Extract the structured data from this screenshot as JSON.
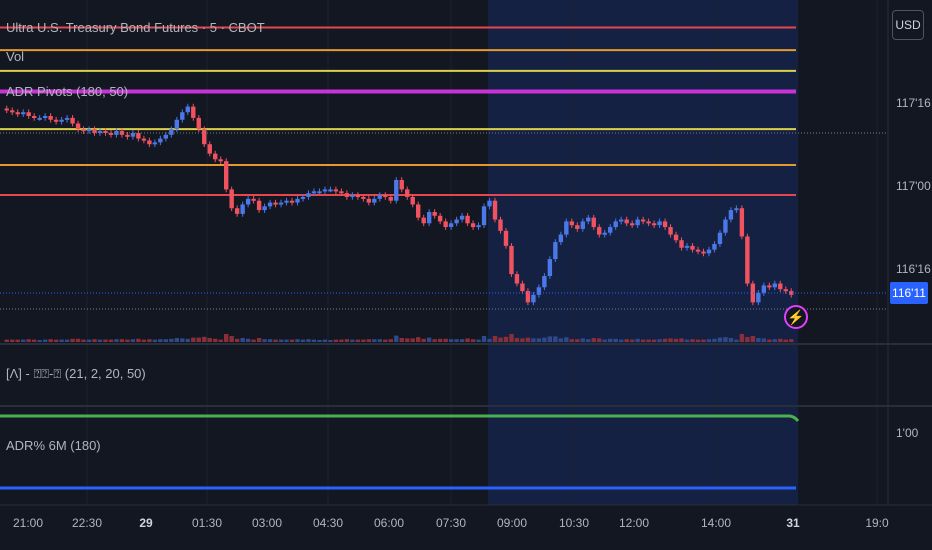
{
  "header": {
    "title": "Ultra U.S. Treasury Bond Futures · 5 · CBOT",
    "vol_label": "Vol",
    "adr_pivots_label": "ADR Pivots (180, 50)",
    "currency": "USD"
  },
  "indicators": {
    "panel2_label": "[Λ] - ⍰⍰-⍰ (21, 2, 20, 50)",
    "panel3_label": "ADR% 6M (180)",
    "panel3_value": "1'00"
  },
  "price_axis": {
    "labels": [
      "117'16",
      "117'00",
      "116'16"
    ],
    "current_price": "116'11"
  },
  "time_axis": {
    "labels": [
      "21:00",
      "22:30",
      "29",
      "01:30",
      "03:00",
      "04:30",
      "06:00",
      "07:30",
      "09:00",
      "10:30",
      "12:00",
      "14:00",
      "31",
      "19:0"
    ]
  },
  "colors": {
    "background": "#131722",
    "up_candle": "#4a78e8",
    "down_candle": "#f0535f",
    "line_red": "#e4474f",
    "line_orange": "#e49a2c",
    "line_yellow": "#dcd04a",
    "line_magenta": "#c832d6",
    "adr_green": "#4caf50",
    "adr_blue": "#2962ff"
  },
  "icons": {
    "alert": "lightning-icon"
  },
  "chart_data": {
    "type": "candlestick",
    "price_ylim": [
      116.1,
      117.8
    ],
    "pivot_levels": [
      {
        "level": 117.76,
        "color": "red"
      },
      {
        "level": 117.64,
        "color": "orange"
      },
      {
        "level": 117.53,
        "color": "yellow"
      },
      {
        "level": 117.42,
        "color": "magenta"
      },
      {
        "level": 117.22,
        "color": "yellow"
      },
      {
        "level": 117.03,
        "color": "orange"
      },
      {
        "level": 116.87,
        "color": "red"
      }
    ],
    "current_price": 116.34,
    "closes": [
      117.32,
      117.31,
      117.3,
      117.31,
      117.29,
      117.28,
      117.28,
      117.29,
      117.27,
      117.26,
      117.27,
      117.28,
      117.25,
      117.22,
      117.21,
      117.22,
      117.2,
      117.21,
      117.2,
      117.19,
      117.21,
      117.19,
      117.18,
      117.2,
      117.17,
      117.16,
      117.14,
      117.15,
      117.17,
      117.19,
      117.22,
      117.27,
      117.31,
      117.34,
      117.28,
      117.22,
      117.14,
      117.09,
      117.06,
      117.05,
      116.9,
      116.8,
      116.77,
      116.82,
      116.85,
      116.84,
      116.79,
      116.81,
      116.83,
      116.82,
      116.83,
      116.84,
      116.83,
      116.85,
      116.86,
      116.88,
      116.89,
      116.89,
      116.9,
      116.9,
      116.89,
      116.88,
      116.86,
      116.87,
      116.86,
      116.85,
      116.83,
      116.85,
      116.87,
      116.86,
      116.84,
      116.95,
      116.9,
      116.86,
      116.82,
      116.75,
      116.72,
      116.78,
      116.76,
      116.73,
      116.7,
      116.72,
      116.74,
      116.76,
      116.72,
      116.7,
      116.71,
      116.81,
      116.84,
      116.74,
      116.68,
      116.6,
      116.45,
      116.4,
      116.36,
      116.3,
      116.34,
      116.38,
      116.44,
      116.53,
      116.62,
      116.66,
      116.73,
      116.71,
      116.69,
      116.73,
      116.75,
      116.7,
      116.66,
      116.67,
      116.7,
      116.73,
      116.74,
      116.72,
      116.71,
      116.74,
      116.73,
      116.72,
      116.71,
      116.73,
      116.7,
      116.66,
      116.63,
      116.59,
      116.6,
      116.58,
      116.57,
      116.56,
      116.58,
      116.61,
      116.67,
      116.74,
      116.79,
      116.8,
      116.65,
      116.4,
      116.3,
      116.35,
      116.39,
      116.38,
      116.4,
      116.37,
      116.36,
      116.34
    ]
  }
}
